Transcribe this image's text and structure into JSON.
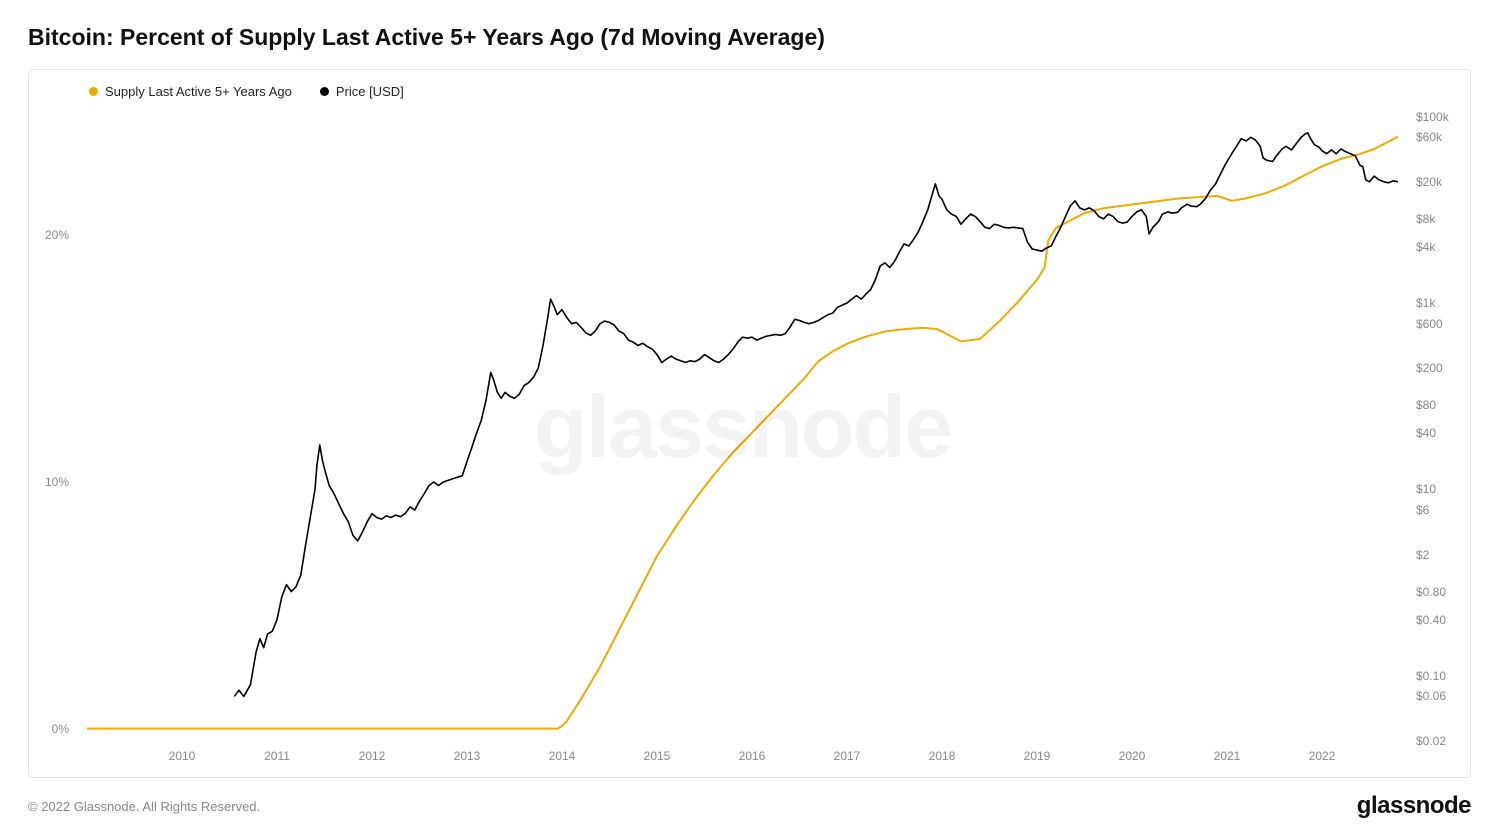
{
  "title": "Bitcoin: Percent of Supply Last Active 5+ Years Ago (7d Moving Average)",
  "legend": {
    "series1": {
      "label": "Supply Last Active 5+ Years Ago",
      "color": "#f2a900"
    },
    "series2": {
      "label": "Price [USD]",
      "color": "#000000"
    }
  },
  "watermark": "glassnode",
  "copyright": "© 2022 Glassnode. All Rights Reserved.",
  "brand": "glassnode",
  "chart": {
    "background_color": "#ffffff",
    "border_color": "#e5e5e5",
    "x": {
      "min": 2009.0,
      "max": 2022.8,
      "ticks": [
        "2010",
        "2011",
        "2012",
        "2013",
        "2014",
        "2015",
        "2016",
        "2017",
        "2018",
        "2019",
        "2020",
        "2021",
        "2022"
      ]
    },
    "y_left": {
      "type": "linear",
      "min": -0.5,
      "max": 25,
      "ticks": [
        {
          "v": 0,
          "label": "0%"
        },
        {
          "v": 10,
          "label": "10%"
        },
        {
          "v": 20,
          "label": "20%"
        }
      ]
    },
    "y_right": {
      "type": "log",
      "min_log": -1.7,
      "max_log": 5.05,
      "ticks": [
        {
          "v": 0.02,
          "label": "$0.02"
        },
        {
          "v": 0.06,
          "label": "$0.06"
        },
        {
          "v": 0.1,
          "label": "$0.10"
        },
        {
          "v": 0.4,
          "label": "$0.40"
        },
        {
          "v": 0.8,
          "label": "$0.80"
        },
        {
          "v": 2,
          "label": "$2"
        },
        {
          "v": 6,
          "label": "$6"
        },
        {
          "v": 10,
          "label": "$10"
        },
        {
          "v": 40,
          "label": "$40"
        },
        {
          "v": 80,
          "label": "$80"
        },
        {
          "v": 200,
          "label": "$200"
        },
        {
          "v": 600,
          "label": "$600"
        },
        {
          "v": 1000,
          "label": "$1k"
        },
        {
          "v": 4000,
          "label": "$4k"
        },
        {
          "v": 8000,
          "label": "$8k"
        },
        {
          "v": 20000,
          "label": "$20k"
        },
        {
          "v": 60000,
          "label": "$60k"
        },
        {
          "v": 100000,
          "label": "$100k"
        }
      ]
    },
    "supply_series": {
      "color": "#f2a900",
      "stroke_width": 2,
      "points": [
        [
          2009.0,
          0
        ],
        [
          2013.95,
          0
        ],
        [
          2014.0,
          0.1
        ],
        [
          2014.05,
          0.3
        ],
        [
          2014.2,
          1.2
        ],
        [
          2014.4,
          2.5
        ],
        [
          2014.6,
          4.0
        ],
        [
          2014.8,
          5.5
        ],
        [
          2015.0,
          7.0
        ],
        [
          2015.2,
          8.2
        ],
        [
          2015.4,
          9.3
        ],
        [
          2015.6,
          10.3
        ],
        [
          2015.8,
          11.2
        ],
        [
          2016.0,
          12.0
        ],
        [
          2016.2,
          12.8
        ],
        [
          2016.4,
          13.6
        ],
        [
          2016.55,
          14.2
        ],
        [
          2016.7,
          14.9
        ],
        [
          2016.85,
          15.3
        ],
        [
          2017.0,
          15.6
        ],
        [
          2017.2,
          15.9
        ],
        [
          2017.4,
          16.1
        ],
        [
          2017.6,
          16.2
        ],
        [
          2017.8,
          16.25
        ],
        [
          2017.95,
          16.2
        ],
        [
          2018.1,
          15.9
        ],
        [
          2018.2,
          15.7
        ],
        [
          2018.4,
          15.8
        ],
        [
          2018.6,
          16.5
        ],
        [
          2018.8,
          17.3
        ],
        [
          2019.0,
          18.2
        ],
        [
          2019.08,
          18.7
        ],
        [
          2019.12,
          19.8
        ],
        [
          2019.2,
          20.3
        ],
        [
          2019.35,
          20.6
        ],
        [
          2019.5,
          20.9
        ],
        [
          2019.7,
          21.1
        ],
        [
          2019.9,
          21.2
        ],
        [
          2020.1,
          21.3
        ],
        [
          2020.3,
          21.4
        ],
        [
          2020.5,
          21.5
        ],
        [
          2020.7,
          21.55
        ],
        [
          2020.9,
          21.6
        ],
        [
          2021.05,
          21.4
        ],
        [
          2021.2,
          21.5
        ],
        [
          2021.4,
          21.7
        ],
        [
          2021.6,
          22.0
        ],
        [
          2021.8,
          22.4
        ],
        [
          2022.0,
          22.8
        ],
        [
          2022.2,
          23.1
        ],
        [
          2022.4,
          23.3
        ],
        [
          2022.55,
          23.5
        ],
        [
          2022.7,
          23.8
        ],
        [
          2022.8,
          24.0
        ]
      ]
    },
    "price_series": {
      "color": "#000000",
      "stroke_width": 1.6,
      "points": [
        [
          2010.55,
          0.06
        ],
        [
          2010.6,
          0.07
        ],
        [
          2010.65,
          0.06
        ],
        [
          2010.72,
          0.08
        ],
        [
          2010.78,
          0.18
        ],
        [
          2010.82,
          0.25
        ],
        [
          2010.86,
          0.2
        ],
        [
          2010.9,
          0.28
        ],
        [
          2010.95,
          0.3
        ],
        [
          2011.0,
          0.4
        ],
        [
          2011.05,
          0.7
        ],
        [
          2011.1,
          0.95
        ],
        [
          2011.15,
          0.8
        ],
        [
          2011.2,
          0.9
        ],
        [
          2011.25,
          1.2
        ],
        [
          2011.3,
          2.5
        ],
        [
          2011.35,
          5.0
        ],
        [
          2011.4,
          10
        ],
        [
          2011.42,
          18
        ],
        [
          2011.45,
          30
        ],
        [
          2011.48,
          20
        ],
        [
          2011.52,
          14
        ],
        [
          2011.55,
          11
        ],
        [
          2011.6,
          9
        ],
        [
          2011.65,
          7
        ],
        [
          2011.7,
          5.5
        ],
        [
          2011.75,
          4.5
        ],
        [
          2011.8,
          3.2
        ],
        [
          2011.85,
          2.8
        ],
        [
          2011.9,
          3.5
        ],
        [
          2011.95,
          4.5
        ],
        [
          2012.0,
          5.5
        ],
        [
          2012.05,
          5.0
        ],
        [
          2012.1,
          4.8
        ],
        [
          2012.15,
          5.2
        ],
        [
          2012.2,
          5.0
        ],
        [
          2012.25,
          5.3
        ],
        [
          2012.3,
          5.1
        ],
        [
          2012.35,
          5.5
        ],
        [
          2012.4,
          6.5
        ],
        [
          2012.45,
          6.0
        ],
        [
          2012.5,
          7.5
        ],
        [
          2012.55,
          9.0
        ],
        [
          2012.6,
          11
        ],
        [
          2012.65,
          12
        ],
        [
          2012.7,
          11
        ],
        [
          2012.75,
          12
        ],
        [
          2012.8,
          12.5
        ],
        [
          2012.85,
          13
        ],
        [
          2012.9,
          13.5
        ],
        [
          2012.95,
          14
        ],
        [
          2013.0,
          20
        ],
        [
          2013.05,
          28
        ],
        [
          2013.1,
          40
        ],
        [
          2013.15,
          55
        ],
        [
          2013.2,
          90
        ],
        [
          2013.25,
          180
        ],
        [
          2013.28,
          150
        ],
        [
          2013.32,
          110
        ],
        [
          2013.36,
          95
        ],
        [
          2013.4,
          110
        ],
        [
          2013.45,
          100
        ],
        [
          2013.5,
          95
        ],
        [
          2013.55,
          105
        ],
        [
          2013.6,
          130
        ],
        [
          2013.65,
          140
        ],
        [
          2013.7,
          160
        ],
        [
          2013.75,
          200
        ],
        [
          2013.8,
          350
        ],
        [
          2013.85,
          700
        ],
        [
          2013.88,
          1100
        ],
        [
          2013.92,
          900
        ],
        [
          2013.95,
          750
        ],
        [
          2014.0,
          850
        ],
        [
          2014.05,
          700
        ],
        [
          2014.1,
          600
        ],
        [
          2014.15,
          620
        ],
        [
          2014.2,
          550
        ],
        [
          2014.25,
          480
        ],
        [
          2014.3,
          450
        ],
        [
          2014.35,
          500
        ],
        [
          2014.4,
          600
        ],
        [
          2014.45,
          640
        ],
        [
          2014.5,
          620
        ],
        [
          2014.55,
          580
        ],
        [
          2014.6,
          500
        ],
        [
          2014.65,
          470
        ],
        [
          2014.7,
          400
        ],
        [
          2014.75,
          380
        ],
        [
          2014.8,
          350
        ],
        [
          2014.85,
          370
        ],
        [
          2014.9,
          340
        ],
        [
          2014.95,
          320
        ],
        [
          2015.0,
          280
        ],
        [
          2015.05,
          230
        ],
        [
          2015.1,
          250
        ],
        [
          2015.15,
          270
        ],
        [
          2015.2,
          250
        ],
        [
          2015.25,
          240
        ],
        [
          2015.3,
          230
        ],
        [
          2015.35,
          240
        ],
        [
          2015.4,
          235
        ],
        [
          2015.45,
          250
        ],
        [
          2015.5,
          280
        ],
        [
          2015.55,
          260
        ],
        [
          2015.6,
          240
        ],
        [
          2015.65,
          230
        ],
        [
          2015.7,
          250
        ],
        [
          2015.75,
          280
        ],
        [
          2015.8,
          320
        ],
        [
          2015.85,
          380
        ],
        [
          2015.9,
          430
        ],
        [
          2015.95,
          420
        ],
        [
          2016.0,
          430
        ],
        [
          2016.05,
          400
        ],
        [
          2016.1,
          420
        ],
        [
          2016.15,
          440
        ],
        [
          2016.2,
          450
        ],
        [
          2016.25,
          460
        ],
        [
          2016.3,
          450
        ],
        [
          2016.35,
          470
        ],
        [
          2016.4,
          550
        ],
        [
          2016.45,
          670
        ],
        [
          2016.5,
          650
        ],
        [
          2016.55,
          620
        ],
        [
          2016.6,
          600
        ],
        [
          2016.65,
          620
        ],
        [
          2016.7,
          650
        ],
        [
          2016.75,
          700
        ],
        [
          2016.8,
          750
        ],
        [
          2016.85,
          780
        ],
        [
          2016.9,
          900
        ],
        [
          2016.95,
          950
        ],
        [
          2017.0,
          1000
        ],
        [
          2017.05,
          1100
        ],
        [
          2017.1,
          1200
        ],
        [
          2017.15,
          1100
        ],
        [
          2017.2,
          1250
        ],
        [
          2017.25,
          1400
        ],
        [
          2017.3,
          1800
        ],
        [
          2017.35,
          2500
        ],
        [
          2017.4,
          2700
        ],
        [
          2017.45,
          2400
        ],
        [
          2017.5,
          2800
        ],
        [
          2017.55,
          3500
        ],
        [
          2017.6,
          4300
        ],
        [
          2017.65,
          4100
        ],
        [
          2017.7,
          4800
        ],
        [
          2017.75,
          5800
        ],
        [
          2017.8,
          7500
        ],
        [
          2017.85,
          10000
        ],
        [
          2017.9,
          15000
        ],
        [
          2017.93,
          19000
        ],
        [
          2017.97,
          14000
        ],
        [
          2018.0,
          13000
        ],
        [
          2018.05,
          10000
        ],
        [
          2018.1,
          9000
        ],
        [
          2018.15,
          8500
        ],
        [
          2018.2,
          7000
        ],
        [
          2018.25,
          8000
        ],
        [
          2018.3,
          9000
        ],
        [
          2018.35,
          8500
        ],
        [
          2018.4,
          7500
        ],
        [
          2018.45,
          6500
        ],
        [
          2018.5,
          6300
        ],
        [
          2018.55,
          7000
        ],
        [
          2018.6,
          6800
        ],
        [
          2018.65,
          6500
        ],
        [
          2018.7,
          6400
        ],
        [
          2018.75,
          6500
        ],
        [
          2018.8,
          6400
        ],
        [
          2018.85,
          6300
        ],
        [
          2018.9,
          4500
        ],
        [
          2018.95,
          3800
        ],
        [
          2019.0,
          3700
        ],
        [
          2019.05,
          3600
        ],
        [
          2019.1,
          3900
        ],
        [
          2019.15,
          4100
        ],
        [
          2019.2,
          5200
        ],
        [
          2019.25,
          6500
        ],
        [
          2019.3,
          8500
        ],
        [
          2019.35,
          11000
        ],
        [
          2019.4,
          12500
        ],
        [
          2019.45,
          10500
        ],
        [
          2019.5,
          10000
        ],
        [
          2019.55,
          10500
        ],
        [
          2019.6,
          9800
        ],
        [
          2019.65,
          8500
        ],
        [
          2019.7,
          8000
        ],
        [
          2019.75,
          9000
        ],
        [
          2019.8,
          8500
        ],
        [
          2019.85,
          7500
        ],
        [
          2019.9,
          7200
        ],
        [
          2019.95,
          7400
        ],
        [
          2020.0,
          8500
        ],
        [
          2020.05,
          9500
        ],
        [
          2020.1,
          10000
        ],
        [
          2020.15,
          8500
        ],
        [
          2020.18,
          5500
        ],
        [
          2020.22,
          6500
        ],
        [
          2020.28,
          7500
        ],
        [
          2020.32,
          9000
        ],
        [
          2020.38,
          9500
        ],
        [
          2020.42,
          9200
        ],
        [
          2020.48,
          9400
        ],
        [
          2020.52,
          10500
        ],
        [
          2020.58,
          11500
        ],
        [
          2020.62,
          11000
        ],
        [
          2020.68,
          10800
        ],
        [
          2020.72,
          11500
        ],
        [
          2020.78,
          13500
        ],
        [
          2020.82,
          16000
        ],
        [
          2020.88,
          19000
        ],
        [
          2020.92,
          23000
        ],
        [
          2020.97,
          29000
        ],
        [
          2021.0,
          33000
        ],
        [
          2021.05,
          40000
        ],
        [
          2021.1,
          48000
        ],
        [
          2021.15,
          58000
        ],
        [
          2021.2,
          55000
        ],
        [
          2021.25,
          60000
        ],
        [
          2021.3,
          56000
        ],
        [
          2021.35,
          48000
        ],
        [
          2021.38,
          36000
        ],
        [
          2021.42,
          34000
        ],
        [
          2021.48,
          33000
        ],
        [
          2021.52,
          38000
        ],
        [
          2021.58,
          45000
        ],
        [
          2021.62,
          48000
        ],
        [
          2021.68,
          44000
        ],
        [
          2021.72,
          50000
        ],
        [
          2021.78,
          60000
        ],
        [
          2021.82,
          65000
        ],
        [
          2021.85,
          67000
        ],
        [
          2021.88,
          58000
        ],
        [
          2021.92,
          50000
        ],
        [
          2021.97,
          47000
        ],
        [
          2022.0,
          43000
        ],
        [
          2022.05,
          40000
        ],
        [
          2022.1,
          44000
        ],
        [
          2022.15,
          40000
        ],
        [
          2022.2,
          45000
        ],
        [
          2022.25,
          42000
        ],
        [
          2022.3,
          40000
        ],
        [
          2022.35,
          38000
        ],
        [
          2022.4,
          30000
        ],
        [
          2022.43,
          29000
        ],
        [
          2022.46,
          21000
        ],
        [
          2022.5,
          20000
        ],
        [
          2022.55,
          23000
        ],
        [
          2022.6,
          21000
        ],
        [
          2022.65,
          20000
        ],
        [
          2022.7,
          19500
        ],
        [
          2022.75,
          20500
        ],
        [
          2022.8,
          20000
        ]
      ]
    }
  }
}
